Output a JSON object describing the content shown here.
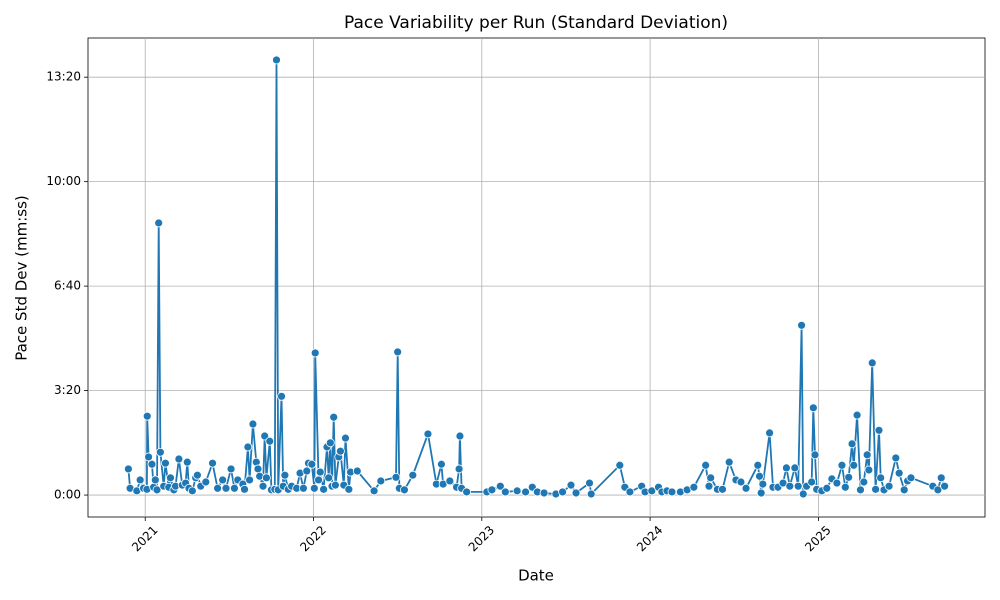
{
  "chart_data": {
    "type": "line",
    "title": "Pace Variability per Run (Standard Deviation)",
    "x_label": "Date",
    "y_label": "Pace Std Dev (mm:ss)",
    "xlim": [
      2020.66,
      2025.99
    ],
    "ylim": [
      -42,
      875
    ],
    "xticks": [
      2021,
      2022,
      2023,
      2024,
      2025
    ],
    "yticks": [
      {
        "value": 0,
        "label": "0:00"
      },
      {
        "value": 200,
        "label": "3:20"
      },
      {
        "value": 400,
        "label": "6:40"
      },
      {
        "value": 600,
        "label": "10:00"
      },
      {
        "value": 800,
        "label": "13:20"
      }
    ],
    "grid": true,
    "series": [
      {
        "color": "#1f77b4",
        "x": [
          2020.9,
          2020.91,
          2020.95,
          2020.97,
          2020.99,
          2021.01,
          2021.012,
          2021.02,
          2021.04,
          2021.05,
          2021.06,
          2021.07,
          2021.08,
          2021.09,
          2021.11,
          2021.12,
          2021.14,
          2021.15,
          2021.17,
          2021.18,
          2021.2,
          2021.22,
          2021.24,
          2021.25,
          2021.26,
          2021.28,
          2021.3,
          2021.31,
          2021.33,
          2021.36,
          2021.4,
          2021.43,
          2021.46,
          2021.48,
          2021.51,
          2021.53,
          2021.55,
          2021.58,
          2021.59,
          2021.61,
          2021.62,
          2021.64,
          2021.66,
          2021.67,
          2021.68,
          2021.7,
          2021.71,
          2021.72,
          2021.74,
          2021.75,
          2021.77,
          2021.78,
          2021.79,
          2021.81,
          2021.82,
          2021.83,
          2021.85,
          2021.87,
          2021.9,
          2021.92,
          2021.94,
          2021.96,
          2021.97,
          2021.99,
          2022.005,
          2022.01,
          2022.03,
          2022.04,
          2022.06,
          2022.08,
          2022.09,
          2022.1,
          2022.11,
          2022.12,
          2022.13,
          2022.15,
          2022.16,
          2022.18,
          2022.19,
          2022.21,
          2022.22,
          2022.26,
          2022.36,
          2022.4,
          2022.49,
          2022.5,
          2022.51,
          2022.54,
          2022.59,
          2022.68,
          2022.73,
          2022.76,
          2022.77,
          2022.81,
          2022.85,
          2022.865,
          2022.87,
          2022.88,
          2022.91,
          2023.03,
          2023.06,
          2023.11,
          2023.14,
          2023.21,
          2023.26,
          2023.3,
          2023.33,
          2023.37,
          2023.44,
          2023.48,
          2023.53,
          2023.56,
          2023.64,
          2023.65,
          2023.82,
          2023.85,
          2023.88,
          2023.95,
          2023.97,
          2024.01,
          2024.05,
          2024.07,
          2024.1,
          2024.13,
          2024.18,
          2024.22,
          2024.26,
          2024.33,
          2024.35,
          2024.36,
          2024.4,
          2024.43,
          2024.47,
          2024.51,
          2024.54,
          2024.57,
          2024.64,
          2024.65,
          2024.66,
          2024.67,
          2024.71,
          2024.73,
          2024.76,
          2024.79,
          2024.81,
          2024.83,
          2024.86,
          2024.88,
          2024.9,
          2024.91,
          2024.93,
          2024.96,
          2024.97,
          2024.98,
          2024.99,
          2025.02,
          2025.05,
          2025.08,
          2025.11,
          2025.14,
          2025.16,
          2025.18,
          2025.2,
          2025.21,
          2025.23,
          2025.25,
          2025.27,
          2025.29,
          2025.3,
          2025.32,
          2025.34,
          2025.36,
          2025.37,
          2025.39,
          2025.42,
          2025.46,
          2025.48,
          2025.51,
          2025.53,
          2025.55,
          2025.68,
          2025.71,
          2025.73,
          2025.75
        ],
        "values": [
          50,
          13,
          8,
          29,
          13,
          11,
          151,
          73,
          59,
          15,
          29,
          10,
          521,
          82,
          17,
          61,
          15,
          33,
          10,
          17,
          69,
          19,
          23,
          63,
          13,
          8,
          33,
          38,
          17,
          25,
          61,
          13,
          29,
          13,
          50,
          13,
          29,
          21,
          11,
          92,
          29,
          136,
          63,
          50,
          36,
          17,
          113,
          33,
          103,
          10,
          11,
          833,
          10,
          189,
          17,
          38,
          11,
          17,
          13,
          42,
          13,
          46,
          61,
          59,
          13,
          272,
          29,
          44,
          11,
          92,
          33,
          100,
          17,
          149,
          19,
          73,
          84,
          19,
          109,
          11,
          44,
          46,
          8,
          27,
          34,
          274,
          13,
          10,
          38,
          117,
          21,
          59,
          21,
          27,
          15,
          50,
          113,
          13,
          6,
          6,
          10,
          17,
          6,
          8,
          6,
          15,
          6,
          4,
          2,
          6,
          19,
          4,
          23,
          2,
          57,
          15,
          6,
          17,
          6,
          8,
          15,
          6,
          8,
          6,
          6,
          10,
          15,
          57,
          17,
          33,
          11,
          11,
          63,
          29,
          25,
          13,
          57,
          36,
          4,
          21,
          119,
          15,
          15,
          23,
          52,
          17,
          52,
          17,
          325,
          2,
          17,
          25,
          167,
          77,
          11,
          8,
          13,
          31,
          23,
          57,
          15,
          34,
          98,
          57,
          153,
          10,
          25,
          77,
          48,
          253,
          11,
          124,
          33,
          10,
          17,
          71,
          42,
          10,
          27,
          33,
          17,
          10,
          33,
          17
        ]
      }
    ]
  }
}
